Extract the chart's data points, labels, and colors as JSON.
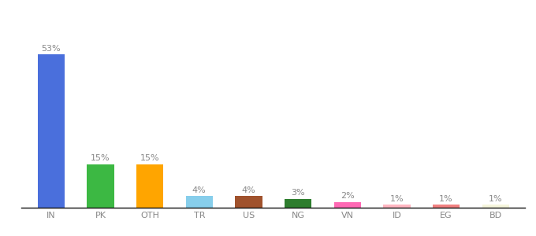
{
  "categories": [
    "IN",
    "PK",
    "OTH",
    "TR",
    "US",
    "NG",
    "VN",
    "ID",
    "EG",
    "BD"
  ],
  "values": [
    53,
    15,
    15,
    4,
    4,
    3,
    2,
    1,
    1,
    1
  ],
  "labels": [
    "53%",
    "15%",
    "15%",
    "4%",
    "4%",
    "3%",
    "2%",
    "1%",
    "1%",
    "1%"
  ],
  "bar_colors": [
    "#4a6fdc",
    "#3cb843",
    "#ffa500",
    "#87ceeb",
    "#a0522d",
    "#2e7d2e",
    "#ff69b4",
    "#ffb6c1",
    "#f08080",
    "#f5f5dc"
  ],
  "background_color": "#ffffff",
  "ylim": [
    0,
    62
  ],
  "xlabel_fontsize": 8,
  "label_fontsize": 8,
  "label_color": "#888888",
  "axis_color": "#cccccc",
  "bar_width": 0.55
}
